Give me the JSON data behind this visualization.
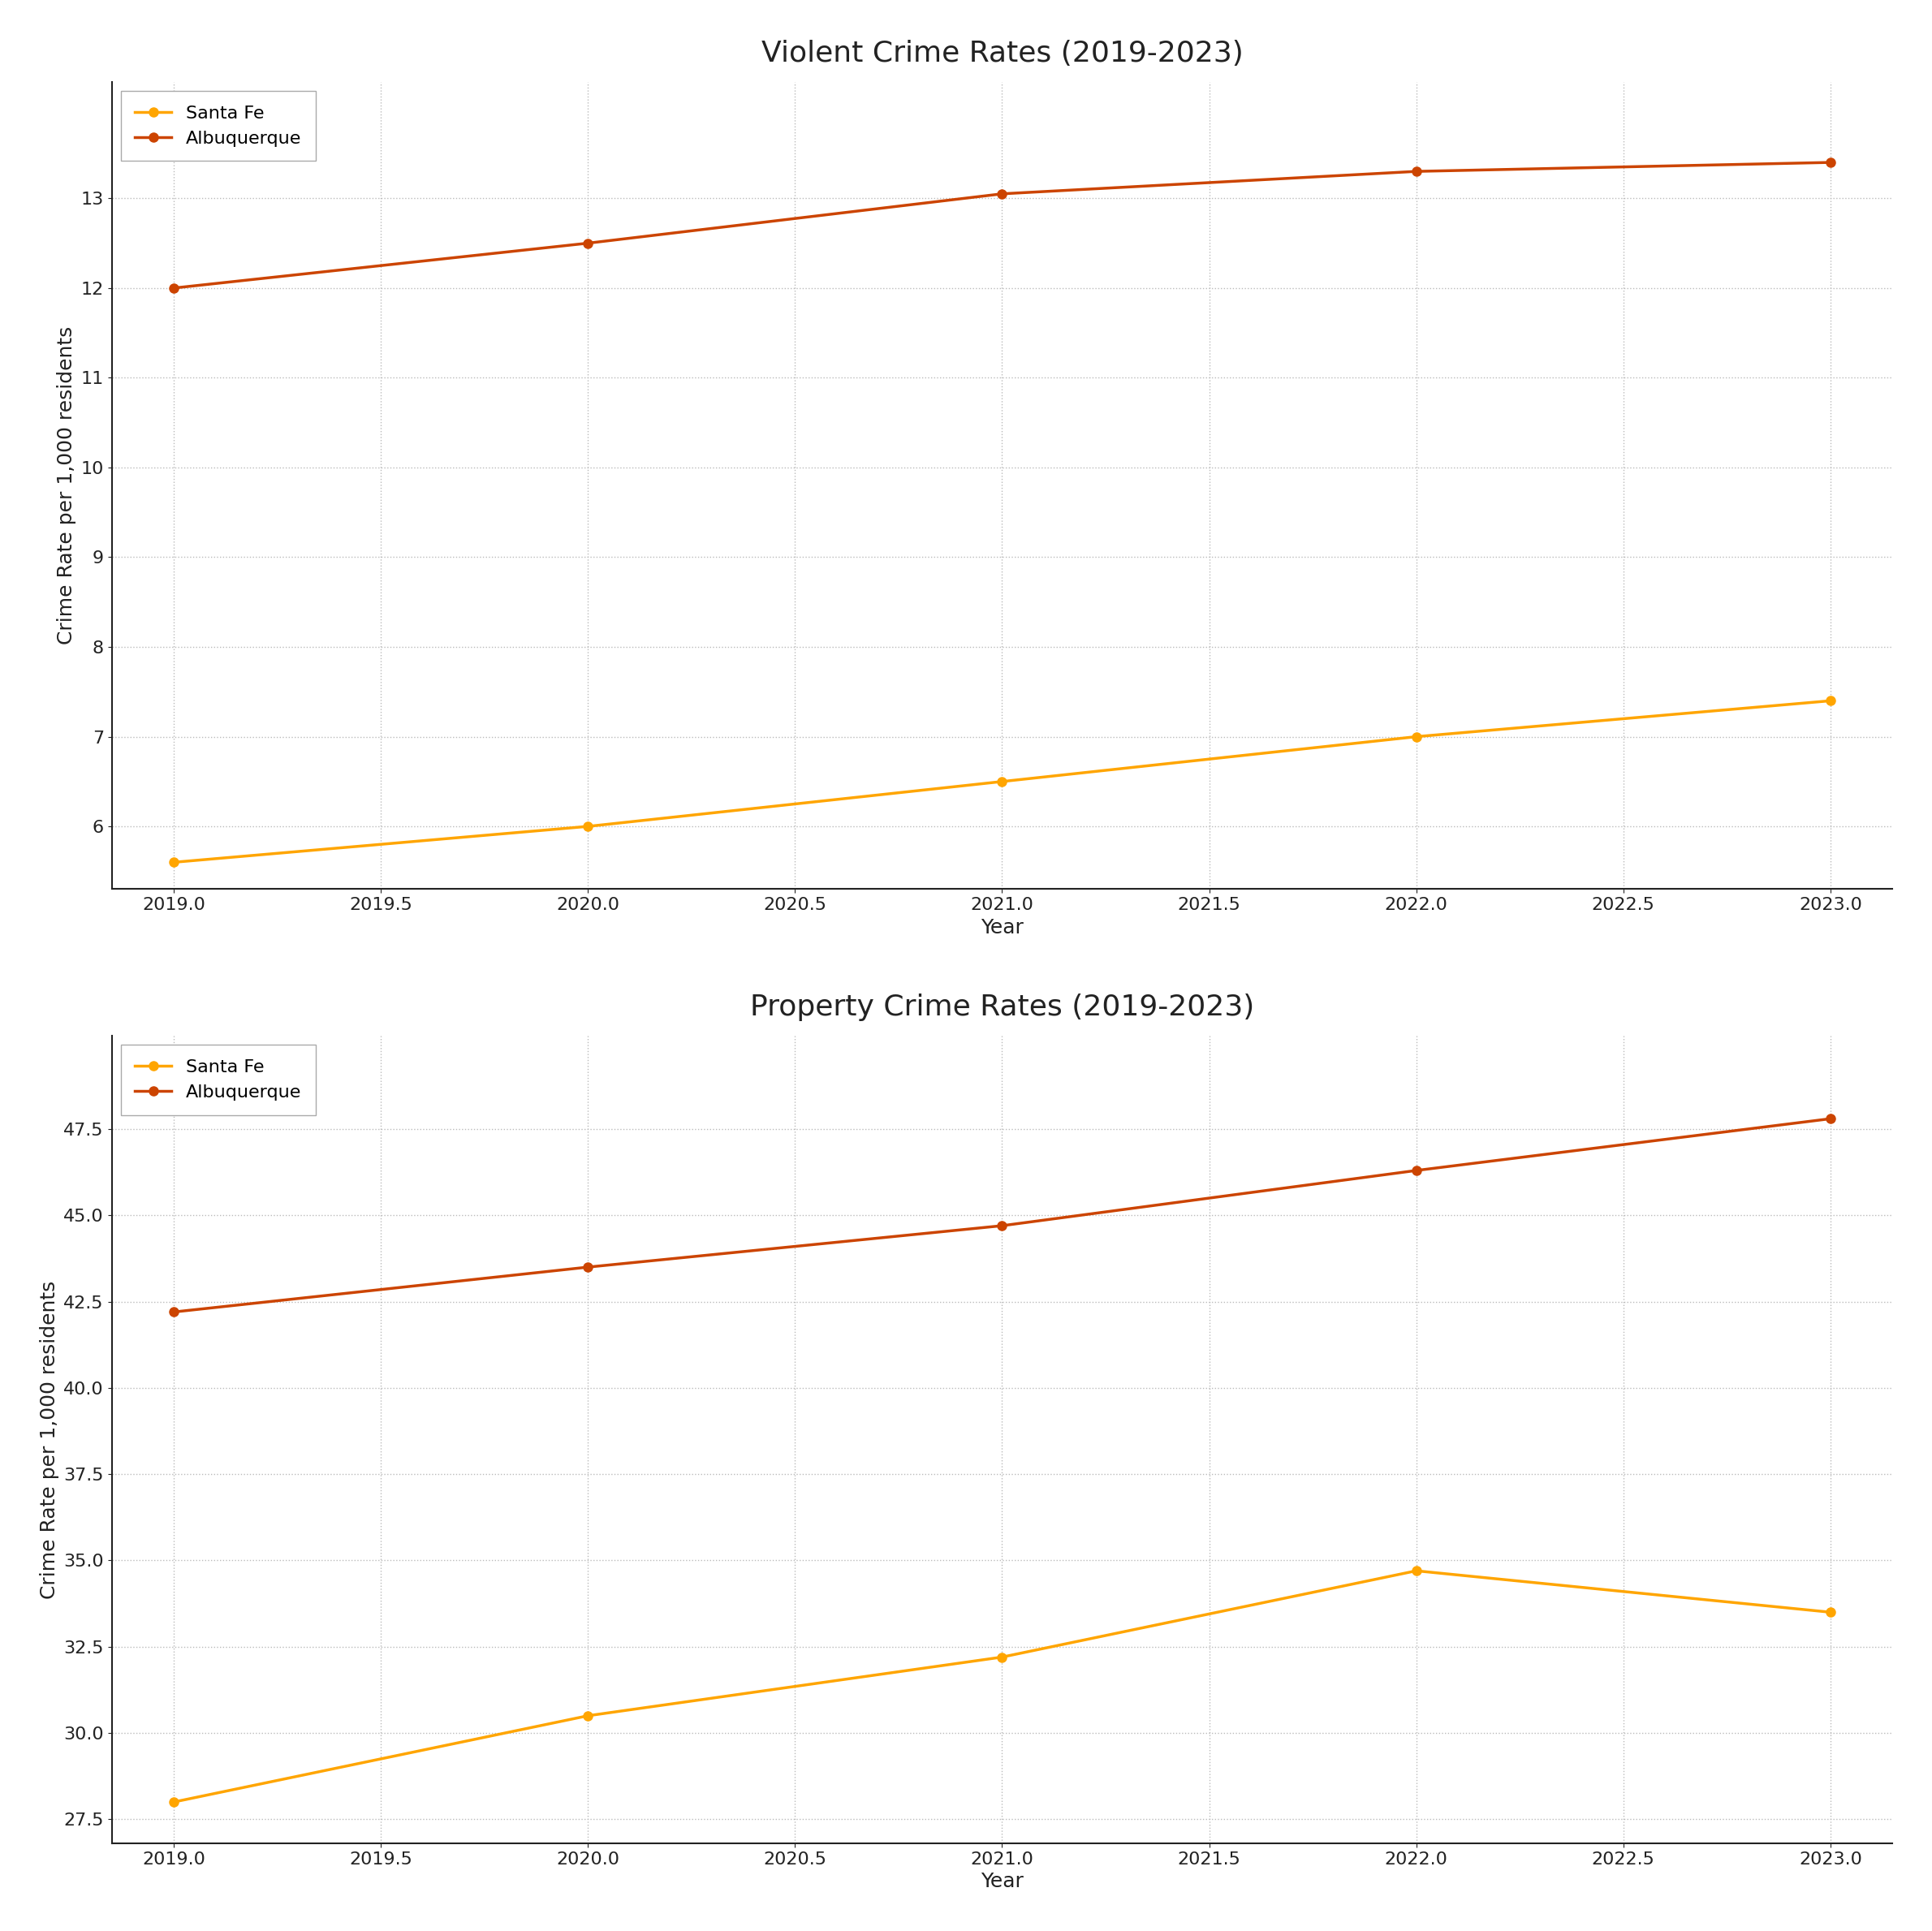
{
  "years": [
    2019,
    2020,
    2021,
    2022,
    2023
  ],
  "violent_santa_fe": [
    5.6,
    6.0,
    6.5,
    7.0,
    7.4
  ],
  "violent_albuquerque": [
    12.0,
    12.5,
    13.05,
    13.3,
    13.4
  ],
  "property_santa_fe": [
    28.0,
    30.5,
    32.2,
    34.7,
    33.5
  ],
  "property_albuquerque": [
    42.2,
    43.5,
    44.7,
    46.3,
    47.8
  ],
  "santa_fe_color": "#FFA500",
  "albuquerque_color": "#CC4400",
  "title_violent": "Violent Crime Rates (2019-2023)",
  "title_property": "Property Crime Rates (2019-2023)",
  "ylabel": "Crime Rate per 1,000 residents",
  "xlabel": "Year",
  "legend_santa_fe": "Santa Fe",
  "legend_albuquerque": "Albuquerque",
  "violent_ylim": [
    5.3,
    14.3
  ],
  "property_ylim": [
    26.8,
    50.2
  ],
  "violent_yticks": [
    6,
    7,
    8,
    9,
    10,
    11,
    12,
    13
  ],
  "property_yticks": [
    27.5,
    30.0,
    32.5,
    35.0,
    37.5,
    40.0,
    42.5,
    45.0,
    47.5
  ],
  "background_color": "#ffffff",
  "grid_color": "#bbbbbb",
  "title_fontsize": 26,
  "label_fontsize": 18,
  "tick_fontsize": 16,
  "legend_fontsize": 16,
  "line_width": 2.5,
  "marker_size": 9,
  "spine_color": "#222222"
}
